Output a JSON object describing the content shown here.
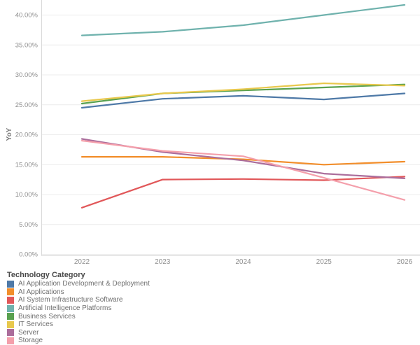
{
  "chart_data": {
    "type": "line",
    "title": "",
    "xlabel": "",
    "ylabel": "YoY",
    "ylim": [
      0,
      42
    ],
    "grid": true,
    "legend_position": "bottom-left",
    "x": [
      "2022",
      "2023",
      "2024",
      "2025",
      "2026"
    ],
    "y_ticks": [
      {
        "label": "0.00%",
        "value": 0
      },
      {
        "label": "5.00%",
        "value": 5
      },
      {
        "label": "10.00%",
        "value": 10
      },
      {
        "label": "15.00%",
        "value": 15
      },
      {
        "label": "20.00%",
        "value": 20
      },
      {
        "label": "25.00%",
        "value": 25
      },
      {
        "label": "30.00%",
        "value": 30
      },
      {
        "label": "35.00%",
        "value": 35
      },
      {
        "label": "40.00%",
        "value": 40
      }
    ],
    "series": [
      {
        "name": "AI Application Development & Deployment",
        "color": "#4e79a7",
        "values": [
          24.5,
          26.0,
          26.5,
          25.9,
          26.9
        ]
      },
      {
        "name": "AI Applications",
        "color": "#f28e2b",
        "values": [
          16.3,
          16.3,
          15.9,
          15.0,
          15.5
        ]
      },
      {
        "name": "AI System Infrastructure Software",
        "color": "#e15759",
        "values": [
          7.8,
          12.5,
          12.6,
          12.4,
          13.0
        ]
      },
      {
        "name": "Artificial Intelligence Platforms",
        "color": "#6fb2ad",
        "values": [
          36.6,
          37.2,
          38.3,
          40.0,
          41.7
        ]
      },
      {
        "name": "Business Services",
        "color": "#59a14f",
        "values": [
          25.2,
          26.9,
          27.4,
          27.9,
          28.4
        ]
      },
      {
        "name": "IT Services",
        "color": "#e8c84d",
        "values": [
          25.6,
          26.9,
          27.6,
          28.6,
          28.2
        ]
      },
      {
        "name": "Server",
        "color": "#ab6d9b",
        "values": [
          19.3,
          17.1,
          15.7,
          13.5,
          12.7
        ]
      },
      {
        "name": "Storage",
        "color": "#f49fab",
        "values": [
          19.0,
          17.3,
          16.4,
          12.8,
          9.1
        ]
      }
    ]
  },
  "legend": {
    "title": "Technology Category"
  }
}
